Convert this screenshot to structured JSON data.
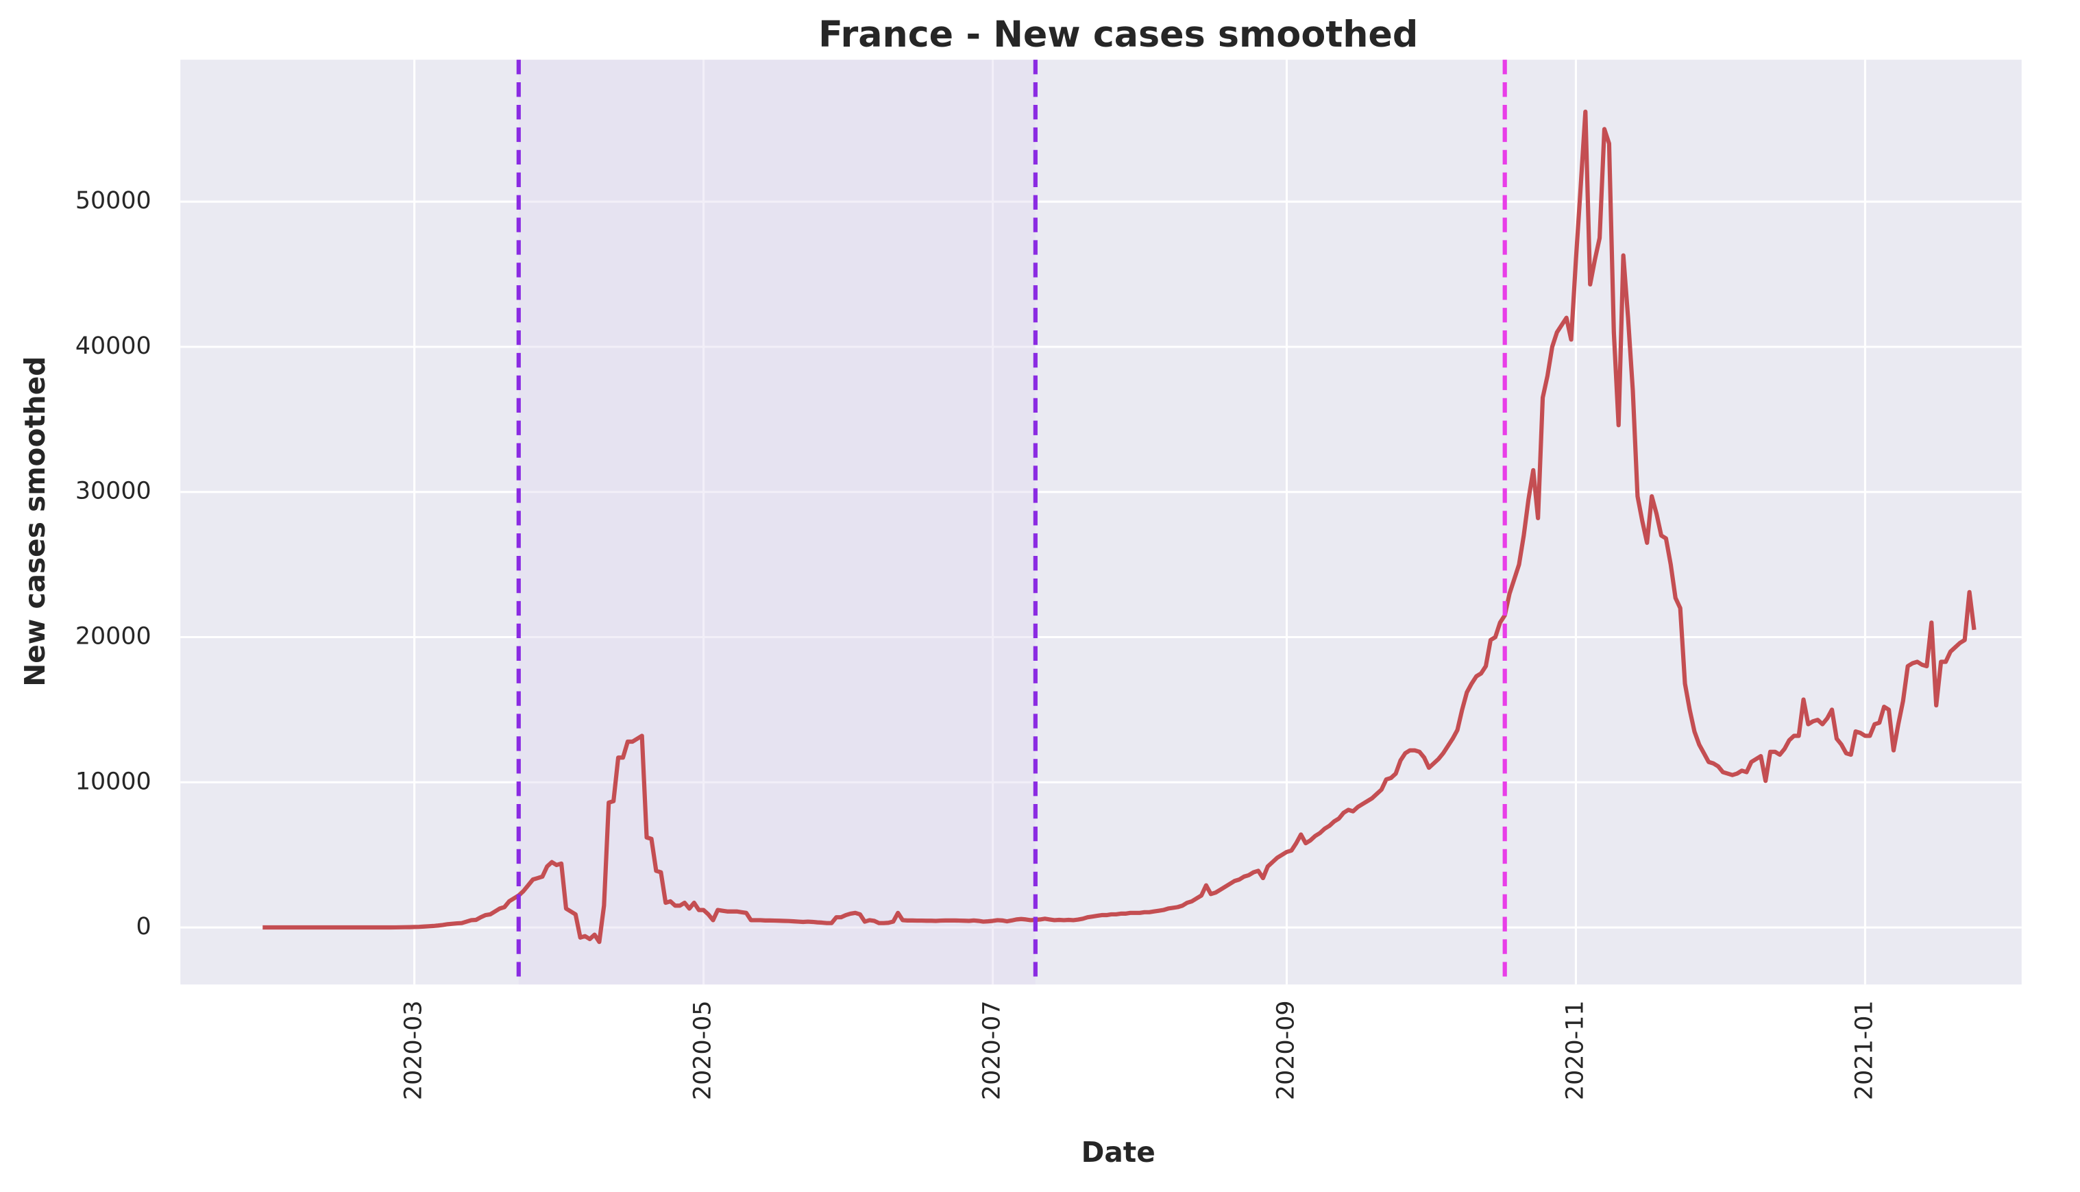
{
  "chart_data": {
    "type": "line",
    "title": "France - New cases smoothed",
    "x_label": "Date",
    "y_label": "New cases smoothed",
    "color": "#c44e52",
    "grid": true,
    "ylim": [
      -3930,
      59780
    ],
    "yticks": [
      0,
      10000,
      20000,
      30000,
      40000,
      50000
    ],
    "vlines": [
      {
        "x": 54,
        "color": "#8a2be2"
      },
      {
        "x": 163,
        "color": "#8a2be2"
      },
      {
        "x": 262,
        "color": "#e83ee8"
      }
    ],
    "shade": {
      "from": 54,
      "to": 163,
      "color": "#e2dcf0"
    },
    "categories": [
      null,
      null,
      null,
      null,
      null,
      null,
      null,
      null,
      null,
      null,
      null,
      null,
      null,
      null,
      null,
      null,
      null,
      null,
      null,
      null,
      null,
      null,
      null,
      null,
      null,
      null,
      null,
      null,
      null,
      null,
      null,
      null,
      "2020-03",
      null,
      null,
      null,
      null,
      null,
      null,
      null,
      null,
      null,
      null,
      null,
      null,
      null,
      null,
      null,
      null,
      null,
      null,
      null,
      null,
      null,
      null,
      null,
      null,
      null,
      null,
      null,
      null,
      null,
      null,
      null,
      null,
      null,
      null,
      null,
      null,
      null,
      null,
      null,
      null,
      null,
      null,
      null,
      null,
      null,
      null,
      null,
      null,
      null,
      null,
      null,
      null,
      null,
      null,
      null,
      null,
      null,
      null,
      null,
      null,
      "2020-05",
      null,
      null,
      null,
      null,
      null,
      null,
      null,
      null,
      null,
      null,
      null,
      null,
      null,
      null,
      null,
      null,
      null,
      null,
      null,
      null,
      null,
      null,
      null,
      null,
      null,
      null,
      null,
      null,
      null,
      null,
      null,
      null,
      null,
      null,
      null,
      null,
      null,
      null,
      null,
      null,
      null,
      null,
      null,
      null,
      null,
      null,
      null,
      null,
      null,
      null,
      null,
      null,
      null,
      null,
      null,
      null,
      null,
      null,
      null,
      null,
      "2020-07",
      null,
      null,
      null,
      null,
      null,
      null,
      null,
      null,
      null,
      null,
      null,
      null,
      null,
      null,
      null,
      null,
      null,
      null,
      null,
      null,
      null,
      null,
      null,
      null,
      null,
      null,
      null,
      null,
      null,
      null,
      null,
      null,
      null,
      null,
      null,
      null,
      null,
      null,
      null,
      null,
      null,
      null,
      null,
      null,
      null,
      null,
      null,
      null,
      null,
      null,
      null,
      null,
      null,
      null,
      null,
      null,
      null,
      null,
      null,
      null,
      null,
      "2020-09",
      null,
      null,
      null,
      null,
      null,
      null,
      null,
      null,
      null,
      null,
      null,
      null,
      null,
      null,
      null,
      null,
      null,
      null,
      null,
      null,
      null,
      null,
      null,
      null,
      null,
      null,
      null,
      null,
      null,
      null,
      null,
      null,
      null,
      null,
      null,
      null,
      null,
      null,
      null,
      null,
      null,
      null,
      null,
      null,
      null,
      null,
      null,
      null,
      null,
      null,
      null,
      null,
      null,
      null,
      null,
      null,
      null,
      null,
      null,
      null,
      "2020-11",
      null,
      null,
      null,
      null,
      null,
      null,
      null,
      null,
      null,
      null,
      null,
      null,
      null,
      null,
      null,
      null,
      null,
      null,
      null,
      null,
      null,
      null,
      null,
      null,
      null,
      null,
      null,
      null,
      null,
      null,
      null,
      null,
      null,
      null,
      null,
      null,
      null,
      null,
      null,
      null,
      null,
      null,
      null,
      null,
      null,
      null,
      null,
      null,
      null,
      null,
      null,
      null,
      null,
      null,
      null,
      null,
      null,
      null,
      null,
      null,
      "2021-01",
      null,
      null,
      null,
      null,
      null,
      null,
      null,
      null,
      null,
      null,
      null,
      null,
      null,
      null,
      null,
      null,
      null,
      null,
      null,
      null,
      null,
      null,
      null
    ],
    "values": [
      0,
      0,
      0,
      0,
      0,
      0,
      0,
      0,
      0,
      0,
      0,
      0,
      0,
      0,
      0,
      0,
      0,
      0,
      0,
      0,
      0,
      0,
      0,
      0,
      0,
      0,
      0,
      0,
      5,
      10,
      15,
      20,
      30,
      40,
      60,
      80,
      100,
      130,
      170,
      220,
      250,
      280,
      300,
      400,
      500,
      520,
      700,
      850,
      900,
      1100,
      1300,
      1400,
      1800,
      2000,
      2200,
      2500,
      2900,
      3300,
      3400,
      3500,
      4200,
      4500,
      4300,
      4400,
      1300,
      1100,
      900,
      -700,
      -600,
      -800,
      -500,
      -1000,
      1500,
      8600,
      8700,
      11700,
      11700,
      12800,
      12800,
      13000,
      13200,
      6200,
      6100,
      3900,
      3800,
      1700,
      1800,
      1500,
      1500,
      1700,
      1300,
      1700,
      1200,
      1200,
      900,
      500,
      1200,
      1150,
      1100,
      1100,
      1100,
      1050,
      1000,
      500,
      500,
      500,
      480,
      480,
      470,
      460,
      450,
      440,
      420,
      400,
      380,
      400,
      380,
      350,
      330,
      300,
      300,
      700,
      700,
      850,
      950,
      1000,
      900,
      400,
      500,
      450,
      300,
      300,
      320,
      400,
      1000,
      500,
      480,
      480,
      470,
      470,
      460,
      460,
      450,
      470,
      480,
      480,
      480,
      470,
      460,
      450,
      480,
      450,
      400,
      420,
      450,
      500,
      480,
      420,
      480,
      550,
      580,
      550,
      500,
      520,
      550,
      600,
      550,
      500,
      520,
      500,
      520,
      500,
      540,
      600,
      700,
      750,
      800,
      850,
      850,
      900,
      900,
      950,
      950,
      1000,
      1000,
      1000,
      1050,
      1050,
      1100,
      1150,
      1200,
      1300,
      1350,
      1400,
      1500,
      1700,
      1800,
      2000,
      2200,
      2900,
      2300,
      2400,
      2600,
      2800,
      3000,
      3200,
      3300,
      3500,
      3600,
      3800,
      3900,
      3400,
      4200,
      4500,
      4800,
      5000,
      5200,
      5300,
      5800,
      6400,
      5800,
      6000,
      6300,
      6500,
      6800,
      7000,
      7300,
      7500,
      7900,
      8100,
      8000,
      8300,
      8500,
      8700,
      8900,
      9200,
      9500,
      10200,
      10300,
      10600,
      11500,
      12000,
      12200,
      12200,
      12100,
      11700,
      11000,
      11300,
      11600,
      12000,
      12500,
      13000,
      13600,
      15000,
      16200,
      16800,
      17300,
      17500,
      18000,
      19800,
      20000,
      21000,
      21500,
      23000,
      24000,
      25000,
      27000,
      29500,
      31500,
      28200,
      36500,
      38000,
      40000,
      41000,
      41500,
      42000,
      40500,
      46000,
      51000,
      56200,
      44300,
      46000,
      47500,
      55000,
      54000,
      41000,
      34600,
      46300,
      42000,
      37000,
      29700,
      28000,
      26500,
      29700,
      28500,
      27000,
      26800,
      25000,
      22700,
      22000,
      16800,
      15000,
      13500,
      12600,
      12000,
      11400,
      11300,
      11100,
      10700,
      10600,
      10500,
      10600,
      10800,
      10700,
      11400,
      11600,
      11800,
      10100,
      12100,
      12100,
      11900,
      12300,
      12900,
      13200,
      13200,
      15700,
      14000,
      14200,
      14300,
      14000,
      14400,
      15000,
      13000,
      12600,
      12000,
      11900,
      13500,
      13400,
      13200,
      13200,
      14000,
      14100,
      15200,
      15000,
      12200,
      14000,
      15600,
      18000,
      18200,
      18300,
      18100,
      18000,
      21000,
      15300,
      18300,
      18300,
      19000,
      19300,
      19600,
      19800,
      23100,
      20500
    ]
  }
}
